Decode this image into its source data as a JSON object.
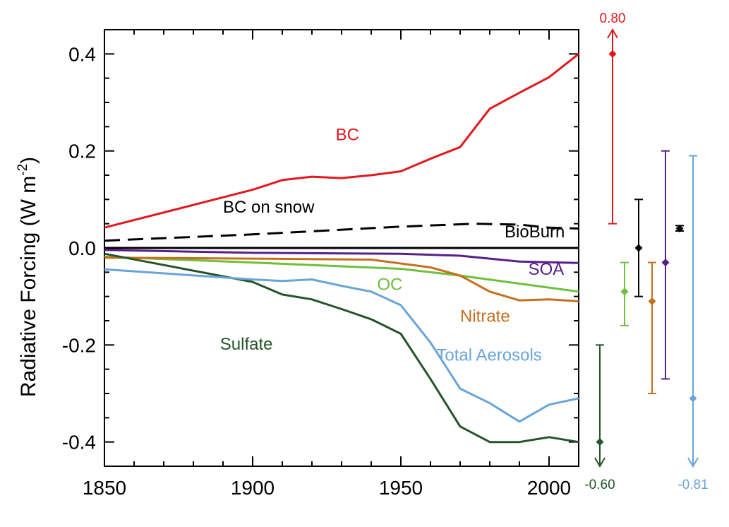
{
  "chart_data": {
    "type": "line",
    "title": "",
    "xlabel": "",
    "ylabel": {
      "main": "Radiative Forcing (W m",
      "sup": "-2",
      "close": ")"
    },
    "xlim": [
      1850,
      2010
    ],
    "ylim": [
      -0.45,
      0.45
    ],
    "xticks": [
      {
        "value": 1850,
        "label": "1850"
      },
      {
        "value": 1900,
        "label": "1900"
      },
      {
        "value": 1950,
        "label": "1950"
      },
      {
        "value": 2000,
        "label": "2000"
      }
    ],
    "yticks": [
      {
        "value": 0.4,
        "label": "0.4"
      },
      {
        "value": 0.2,
        "label": "0.2"
      },
      {
        "value": 0.0,
        "label": "0.0"
      },
      {
        "value": -0.2,
        "label": "-0.2"
      },
      {
        "value": -0.4,
        "label": "-0.4"
      }
    ],
    "series": [
      {
        "name": "BC",
        "color": "#e0191e",
        "dash": false,
        "x": [
          1850,
          1900,
          1910,
          1920,
          1930,
          1940,
          1950,
          1960,
          1970,
          1980,
          1990,
          2000,
          2010
        ],
        "y": [
          0.042,
          0.12,
          0.14,
          0.147,
          0.144,
          0.15,
          0.158,
          0.184,
          0.208,
          0.287,
          0.32,
          0.352,
          0.4
        ]
      },
      {
        "name": "BC on snow",
        "color": "#000000",
        "dash": true,
        "x": [
          1850,
          1900,
          1950,
          1975,
          1990,
          2000,
          2010
        ],
        "y": [
          0.015,
          0.028,
          0.044,
          0.05,
          0.048,
          0.042,
          0.04
        ]
      },
      {
        "name": "BioBurn",
        "color": "#000000",
        "dash": false,
        "x": [
          1850,
          2010
        ],
        "y": [
          0.0,
          0.0
        ]
      },
      {
        "name": "SOA",
        "color": "#5a1e8a",
        "dash": false,
        "x": [
          1850,
          1900,
          1950,
          1970,
          1990,
          2010
        ],
        "y": [
          -0.004,
          -0.01,
          -0.012,
          -0.016,
          -0.028,
          -0.031
        ]
      },
      {
        "name": "OC",
        "color": "#6fbf3a",
        "dash": false,
        "x": [
          1850,
          1900,
          1950,
          1970,
          2010
        ],
        "y": [
          -0.018,
          -0.03,
          -0.043,
          -0.057,
          -0.09
        ]
      },
      {
        "name": "Nitrate",
        "color": "#c66f1e",
        "dash": false,
        "x": [
          1850,
          1900,
          1940,
          1950,
          1960,
          1970,
          1980,
          1990,
          2000,
          2010
        ],
        "y": [
          -0.02,
          -0.022,
          -0.024,
          -0.032,
          -0.04,
          -0.057,
          -0.09,
          -0.108,
          -0.106,
          -0.11
        ]
      },
      {
        "name": "Sulfate",
        "color": "#24542a",
        "dash": false,
        "x": [
          1850,
          1900,
          1910,
          1920,
          1930,
          1940,
          1950,
          1960,
          1970,
          1980,
          1990,
          2000,
          2010
        ],
        "y": [
          -0.012,
          -0.07,
          -0.096,
          -0.106,
          -0.126,
          -0.147,
          -0.177,
          -0.27,
          -0.368,
          -0.4,
          -0.4,
          -0.39,
          -0.4
        ]
      },
      {
        "name": "Total Aerosols",
        "color": "#6aa4d8",
        "dash": false,
        "x": [
          1850,
          1900,
          1910,
          1920,
          1930,
          1940,
          1950,
          1960,
          1970,
          1980,
          1990,
          2000,
          2010
        ],
        "y": [
          -0.044,
          -0.065,
          -0.068,
          -0.065,
          -0.078,
          -0.09,
          -0.118,
          -0.195,
          -0.29,
          -0.32,
          -0.358,
          -0.323,
          -0.31
        ]
      }
    ],
    "series_labels": [
      {
        "text": "BC",
        "color": "#e0191e",
        "x": 1928,
        "y": 0.222
      },
      {
        "text": "BC on snow",
        "color": "#000000",
        "x": 1890,
        "y": 0.073
      },
      {
        "text": "BioBurn",
        "color": "#000000",
        "x": 1985,
        "y": 0.022
      },
      {
        "text": "SOA",
        "color": "#5a1e8a",
        "x": 1993,
        "y": -0.055
      },
      {
        "text": "OC",
        "color": "#6fbf3a",
        "x": 1942,
        "y": -0.087
      },
      {
        "text": "Nitrate",
        "color": "#c66f1e",
        "x": 1970,
        "y": -0.152
      },
      {
        "text": "Sulfate",
        "color": "#24542a",
        "x": 1889,
        "y": -0.21
      },
      {
        "text": "Total Aerosols",
        "color": "#6aa4d8",
        "x": 1962,
        "y": -0.232
      }
    ],
    "error_bars": [
      {
        "name": "BC",
        "color": "#e0191e",
        "center": 0.4,
        "low": 0.05,
        "high": 0.45,
        "arrow": "up",
        "annotation": "0.80"
      },
      {
        "name": "OC",
        "color": "#6fbf3a",
        "center": -0.09,
        "low": -0.16,
        "high": -0.03,
        "arrow": "",
        "annotation": ""
      },
      {
        "name": "BioBurn",
        "color": "#000000",
        "center": 0.0,
        "low": -0.1,
        "high": 0.1,
        "arrow": "",
        "annotation": ""
      },
      {
        "name": "Nitrate",
        "color": "#c66f1e",
        "center": -0.11,
        "low": -0.3,
        "high": -0.03,
        "arrow": "",
        "annotation": ""
      },
      {
        "name": "SOA",
        "color": "#5a1e8a",
        "center": -0.03,
        "low": -0.27,
        "high": 0.2,
        "arrow": "",
        "annotation": ""
      },
      {
        "name": "BC on snow",
        "color": "#000000",
        "center": 0.04,
        "low": 0.035,
        "high": 0.046,
        "arrow": "",
        "annotation": ""
      },
      {
        "name": "Total Aerosols",
        "color": "#6aa4d8",
        "center": -0.31,
        "low": -0.45,
        "high": 0.19,
        "arrow": "down",
        "annotation": "-0.81"
      },
      {
        "name": "Sulfate",
        "color": "#24542a",
        "center": -0.4,
        "low": -0.45,
        "high": -0.2,
        "arrow": "down",
        "annotation": "-0.60"
      }
    ]
  }
}
